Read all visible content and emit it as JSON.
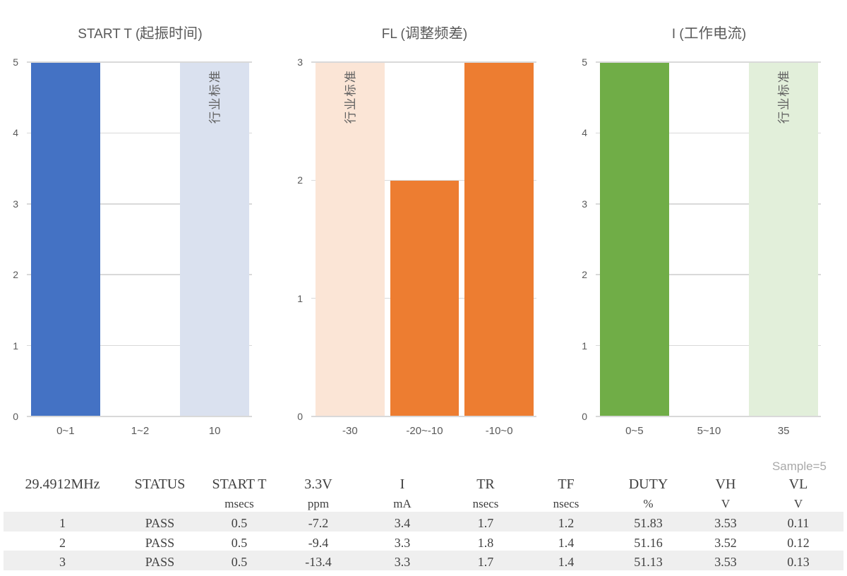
{
  "page": {
    "background": "#FFFFFF",
    "sample_label": "Sample=5"
  },
  "chart_data": [
    {
      "type": "bar",
      "title": "START T (起振时间)",
      "categories": [
        "0~1",
        "1~2",
        "10"
      ],
      "values": [
        5,
        0,
        5
      ],
      "bar_colors": [
        "#4472C4",
        "#4472C4",
        "#DAE1EF"
      ],
      "bar_labels": [
        "",
        "",
        "行业标准"
      ],
      "ylim": [
        0,
        5
      ],
      "yticks": [
        0,
        1,
        2,
        3,
        4,
        5
      ],
      "xlabel": "",
      "ylabel": "",
      "grid": true,
      "legend": "none"
    },
    {
      "type": "bar",
      "title": "FL (调整频差)",
      "categories": [
        "-30",
        "-20~-10",
        "-10~0"
      ],
      "values": [
        3,
        2,
        3
      ],
      "bar_colors": [
        "#FBE5D6",
        "#ED7D31",
        "#ED7D31"
      ],
      "bar_labels": [
        "行业标准",
        "",
        ""
      ],
      "ylim": [
        0,
        3
      ],
      "yticks": [
        0,
        1,
        2,
        3
      ],
      "xlabel": "",
      "ylabel": "",
      "grid": true,
      "legend": "none"
    },
    {
      "type": "bar",
      "title": "I (工作电流)",
      "categories": [
        "0~5",
        "5~10",
        "35"
      ],
      "values": [
        5,
        0,
        5
      ],
      "bar_colors": [
        "#70AD47",
        "#70AD47",
        "#E2EFDA"
      ],
      "bar_labels": [
        "",
        "",
        "行业标准"
      ],
      "ylim": [
        0,
        5
      ],
      "yticks": [
        0,
        1,
        2,
        3,
        4,
        5
      ],
      "xlabel": "",
      "ylabel": "",
      "grid": true,
      "legend": "none"
    }
  ],
  "table": {
    "headers": [
      "29.4912MHz",
      "STATUS",
      "START T",
      "3.3V",
      "I",
      "TR",
      "TF",
      "DUTY",
      "VH",
      "VL"
    ],
    "units": [
      "",
      "",
      "msecs",
      "ppm",
      "mA",
      "nsecs",
      "nsecs",
      "%",
      "V",
      "V"
    ],
    "rows": [
      [
        "1",
        "PASS",
        "0.5",
        "-7.2",
        "3.4",
        "1.7",
        "1.2",
        "51.83",
        "3.53",
        "0.11"
      ],
      [
        "2",
        "PASS",
        "0.5",
        "-9.4",
        "3.3",
        "1.8",
        "1.4",
        "51.16",
        "3.52",
        "0.12"
      ],
      [
        "3",
        "PASS",
        "0.5",
        "-13.4",
        "3.3",
        "1.7",
        "1.4",
        "51.13",
        "3.53",
        "0.13"
      ]
    ],
    "stripe_color": "#EFEFEF",
    "text_color": "#404040"
  },
  "theme": {
    "grid_color": "#D9D9D9",
    "axis_color": "#D9D9D9",
    "chart_text_color": "#595959",
    "bar_label_color": "#616161",
    "sample_label_color": "#A9A9A9"
  }
}
